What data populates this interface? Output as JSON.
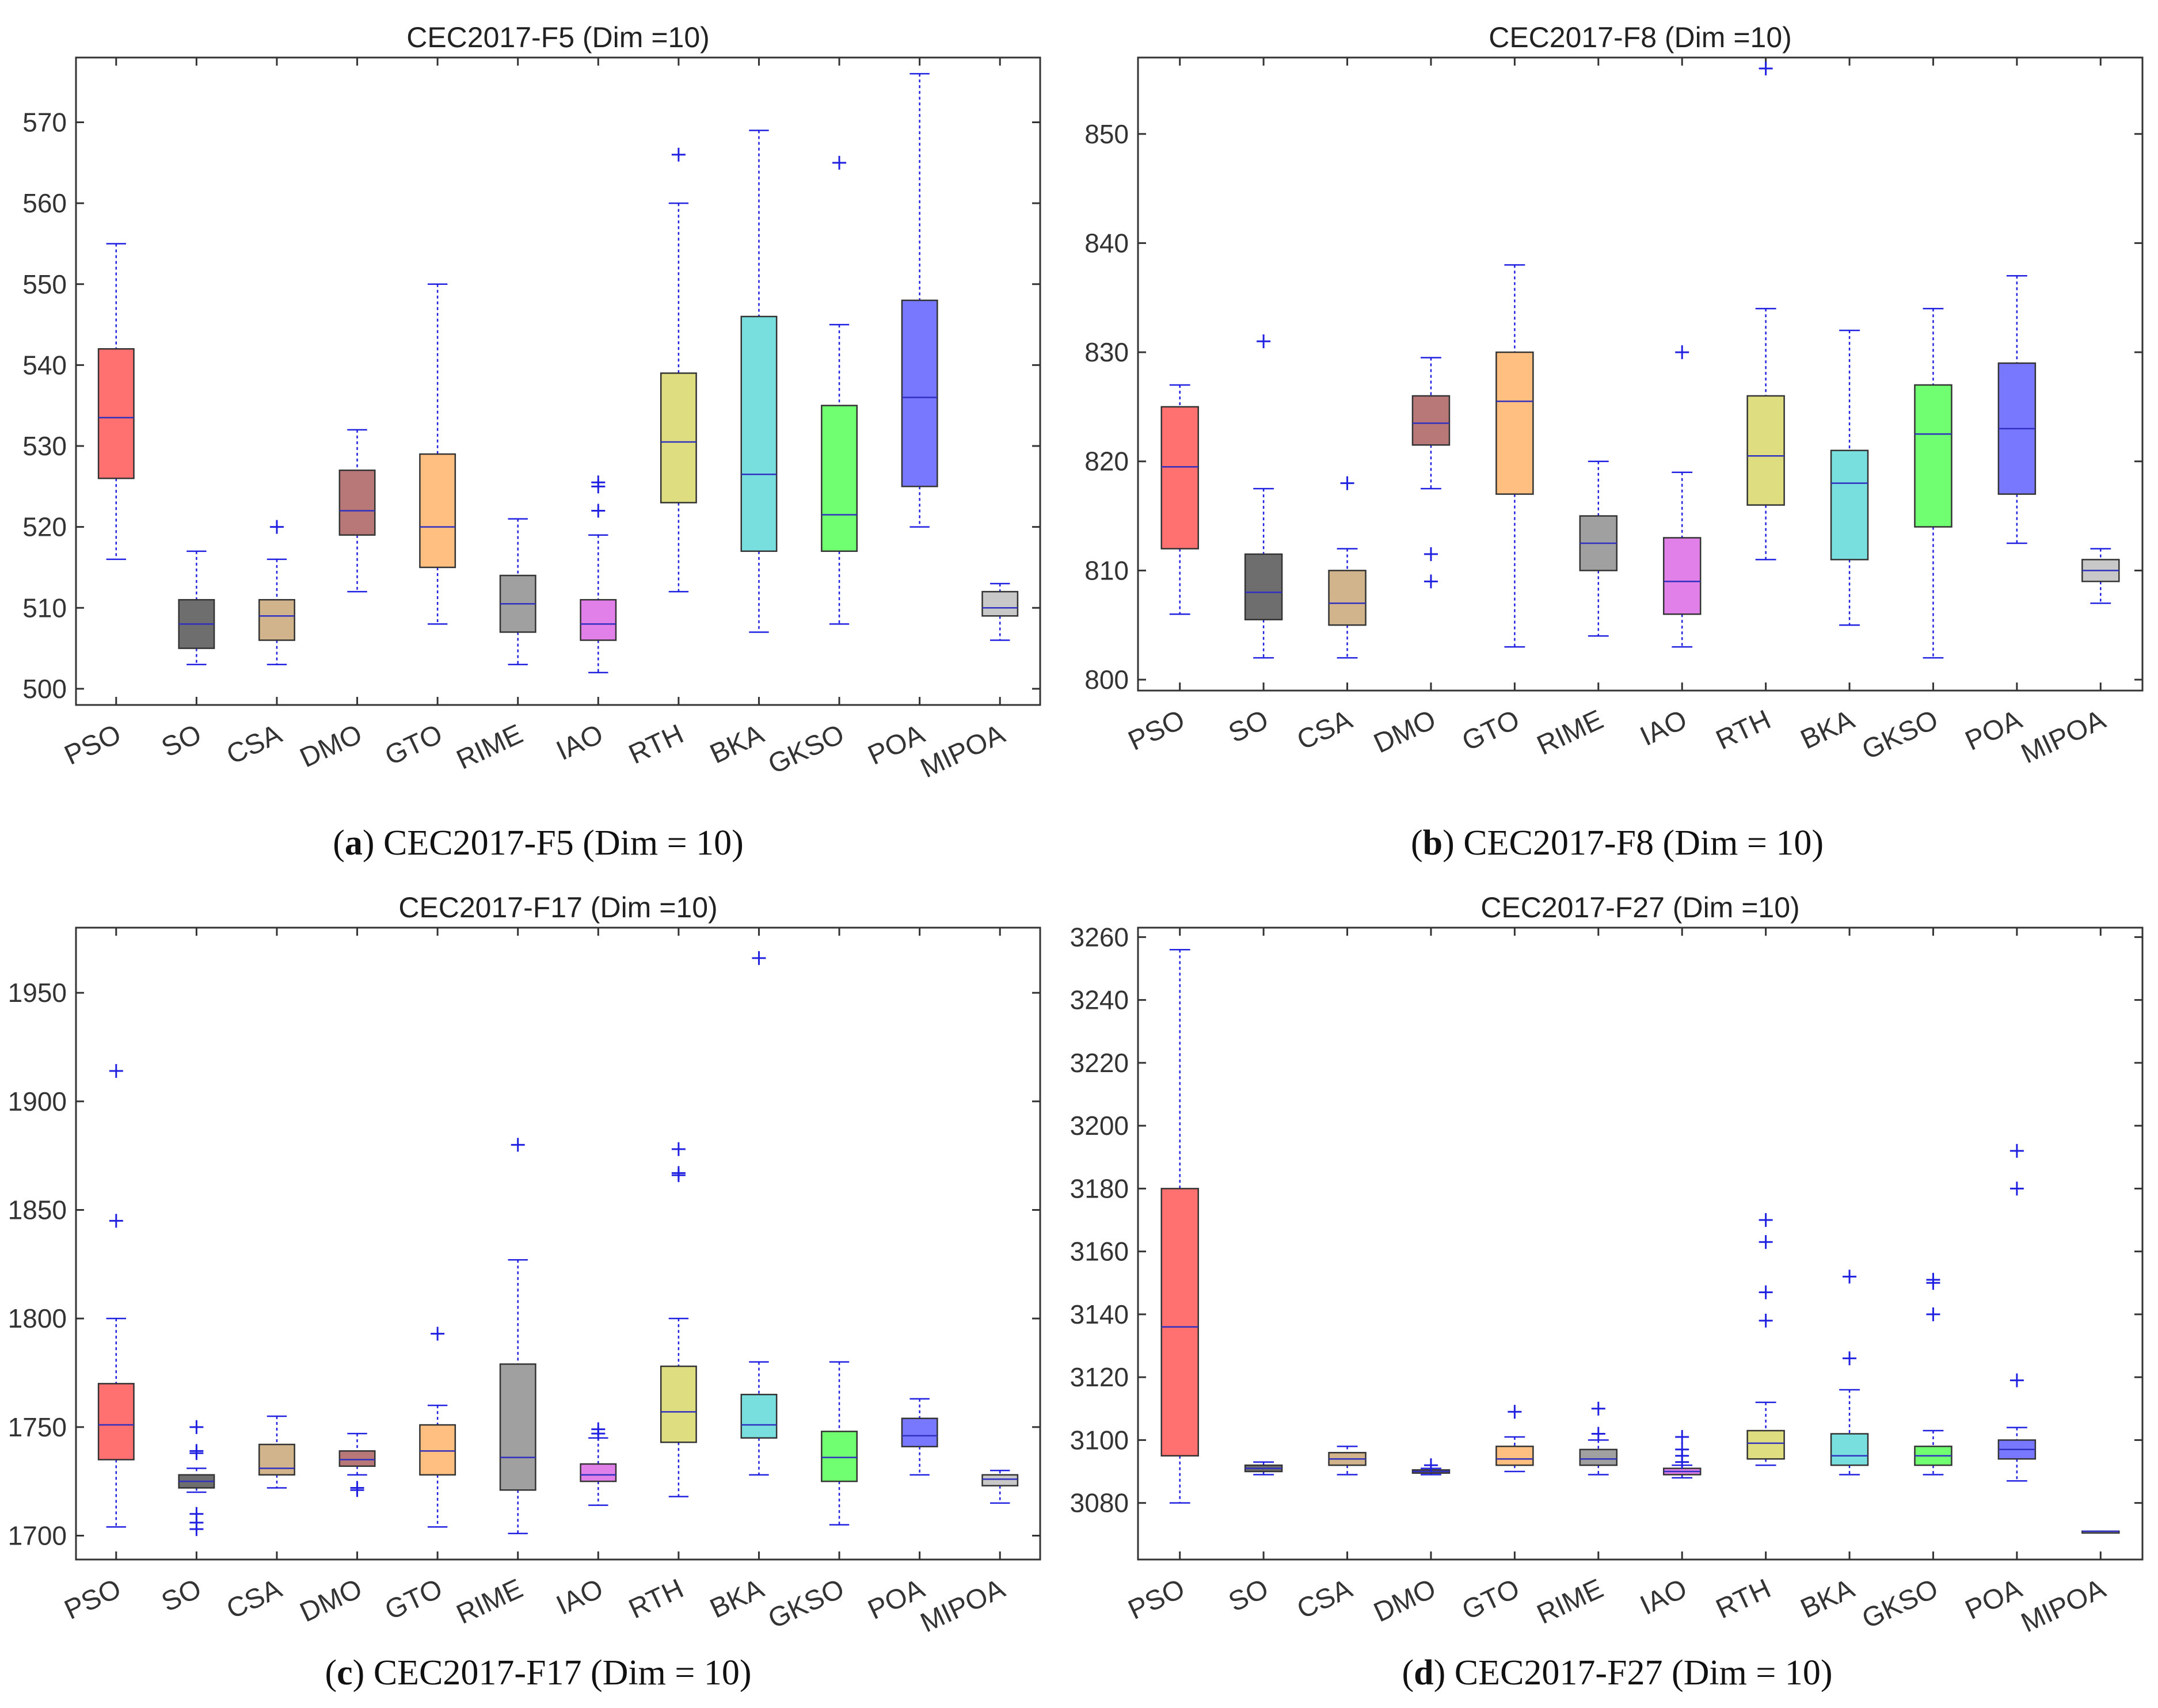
{
  "captions": [
    {
      "letter": "a",
      "text": " CEC2017-F5 (Dim = 10)"
    },
    {
      "letter": "b",
      "text": " CEC2017-F8 (Dim = 10)"
    },
    {
      "letter": "c",
      "text": " CEC2017-F17 (Dim = 10)"
    },
    {
      "letter": "d",
      "text": " CEC2017-F27 (Dim = 10)"
    }
  ],
  "style": {
    "box_colors": {
      "PSO": "#ff7070",
      "SO": "#6e6e6e",
      "CSA": "#d2b48c",
      "DMO": "#b87878",
      "GTO": "#ffbf80",
      "RIME": "#a0a0a0",
      "IAO": "#e080e8",
      "RTH": "#dede80",
      "BKA": "#78dede",
      "GKSO": "#70ff70",
      "POA": "#7878ff",
      "MIPOA": "#c8c8c8"
    },
    "whisker_color": "#2020e0",
    "outlier_color": "#2020e0",
    "median_color": "#3030c0"
  },
  "chart_data": [
    {
      "type": "box",
      "title": "CEC2017-F5 (Dim =10)",
      "categories": [
        "PSO",
        "SO",
        "CSA",
        "DMO",
        "GTO",
        "RIME",
        "IAO",
        "RTH",
        "BKA",
        "GKSO",
        "POA",
        "MIPOA"
      ],
      "ylim": [
        498,
        578
      ],
      "yticks": [
        500,
        510,
        520,
        530,
        540,
        550,
        560,
        570
      ],
      "boxes": [
        {
          "min": 516,
          "q1": 526,
          "median": 533.5,
          "q3": 542,
          "max": 555,
          "outliers": []
        },
        {
          "min": 503,
          "q1": 505,
          "median": 508,
          "q3": 511,
          "max": 517,
          "outliers": []
        },
        {
          "min": 503,
          "q1": 506,
          "median": 509,
          "q3": 511,
          "max": 516,
          "outliers": [
            520
          ]
        },
        {
          "min": 512,
          "q1": 519,
          "median": 522,
          "q3": 527,
          "max": 532,
          "outliers": []
        },
        {
          "min": 508,
          "q1": 515,
          "median": 520,
          "q3": 529,
          "max": 550,
          "outliers": []
        },
        {
          "min": 503,
          "q1": 507,
          "median": 510.5,
          "q3": 514,
          "max": 521,
          "outliers": []
        },
        {
          "min": 502,
          "q1": 506,
          "median": 508,
          "q3": 511,
          "max": 519,
          "outliers": [
            522,
            525,
            525.5
          ]
        },
        {
          "min": 512,
          "q1": 523,
          "median": 530.5,
          "q3": 539,
          "max": 560,
          "outliers": [
            566
          ]
        },
        {
          "min": 507,
          "q1": 517,
          "median": 526.5,
          "q3": 546,
          "max": 569,
          "outliers": []
        },
        {
          "min": 508,
          "q1": 517,
          "median": 521.5,
          "q3": 535,
          "max": 545,
          "outliers": [
            565
          ]
        },
        {
          "min": 520,
          "q1": 525,
          "median": 536,
          "q3": 548,
          "max": 576,
          "outliers": []
        },
        {
          "min": 506,
          "q1": 509,
          "median": 510,
          "q3": 512,
          "max": 513,
          "outliers": []
        }
      ]
    },
    {
      "type": "box",
      "title": "CEC2017-F8 (Dim =10)",
      "categories": [
        "PSO",
        "SO",
        "CSA",
        "DMO",
        "GTO",
        "RIME",
        "IAO",
        "RTH",
        "BKA",
        "GKSO",
        "POA",
        "MIPOA"
      ],
      "ylim": [
        799,
        857
      ],
      "yticks": [
        800,
        810,
        820,
        830,
        840,
        850
      ],
      "boxes": [
        {
          "min": 806,
          "q1": 812,
          "median": 819.5,
          "q3": 825,
          "max": 827,
          "outliers": []
        },
        {
          "min": 802,
          "q1": 805.5,
          "median": 808,
          "q3": 811.5,
          "max": 817.5,
          "outliers": [
            831
          ]
        },
        {
          "min": 802,
          "q1": 805,
          "median": 807,
          "q3": 810,
          "max": 812,
          "outliers": [
            818
          ]
        },
        {
          "min": 817.5,
          "q1": 821.5,
          "median": 823.5,
          "q3": 826,
          "max": 829.5,
          "outliers": [
            809,
            811.5
          ]
        },
        {
          "min": 803,
          "q1": 817,
          "median": 825.5,
          "q3": 830,
          "max": 838,
          "outliers": []
        },
        {
          "min": 804,
          "q1": 810,
          "median": 812.5,
          "q3": 815,
          "max": 820,
          "outliers": []
        },
        {
          "min": 803,
          "q1": 806,
          "median": 809,
          "q3": 813,
          "max": 819,
          "outliers": [
            830
          ]
        },
        {
          "min": 811,
          "q1": 816,
          "median": 820.5,
          "q3": 826,
          "max": 834,
          "outliers": [
            856
          ]
        },
        {
          "min": 805,
          "q1": 811,
          "median": 818,
          "q3": 821,
          "max": 832,
          "outliers": []
        },
        {
          "min": 802,
          "q1": 814,
          "median": 822.5,
          "q3": 827,
          "max": 834,
          "outliers": []
        },
        {
          "min": 812.5,
          "q1": 817,
          "median": 823,
          "q3": 829,
          "max": 837,
          "outliers": []
        },
        {
          "min": 807,
          "q1": 809,
          "median": 810,
          "q3": 811,
          "max": 812,
          "outliers": []
        }
      ]
    },
    {
      "type": "box",
      "title": "CEC2017-F17 (Dim =10)",
      "categories": [
        "PSO",
        "SO",
        "CSA",
        "DMO",
        "GTO",
        "RIME",
        "IAO",
        "RTH",
        "BKA",
        "GKSO",
        "POA",
        "MIPOA"
      ],
      "ylim": [
        1689,
        1980
      ],
      "yticks": [
        1700,
        1750,
        1800,
        1850,
        1900,
        1950
      ],
      "boxes": [
        {
          "min": 1704,
          "q1": 1735,
          "median": 1751,
          "q3": 1770,
          "max": 1800,
          "outliers": [
            1845,
            1914
          ]
        },
        {
          "min": 1720,
          "q1": 1722,
          "median": 1725,
          "q3": 1728,
          "max": 1731,
          "outliers": [
            1703,
            1706,
            1710,
            1738,
            1739,
            1750
          ]
        },
        {
          "min": 1722,
          "q1": 1728,
          "median": 1731,
          "q3": 1742,
          "max": 1755,
          "outliers": []
        },
        {
          "min": 1728,
          "q1": 1732,
          "median": 1735,
          "q3": 1739,
          "max": 1747,
          "outliers": [
            1721,
            1722
          ]
        },
        {
          "min": 1704,
          "q1": 1728,
          "median": 1739,
          "q3": 1751,
          "max": 1760,
          "outliers": [
            1793
          ]
        },
        {
          "min": 1701,
          "q1": 1721,
          "median": 1736,
          "q3": 1779,
          "max": 1827,
          "outliers": [
            1880
          ]
        },
        {
          "min": 1714,
          "q1": 1725,
          "median": 1728,
          "q3": 1733,
          "max": 1745,
          "outliers": [
            1747,
            1749
          ]
        },
        {
          "min": 1718,
          "q1": 1743,
          "median": 1757,
          "q3": 1778,
          "max": 1800,
          "outliers": [
            1866,
            1867,
            1878
          ]
        },
        {
          "min": 1728,
          "q1": 1745,
          "median": 1751,
          "q3": 1765,
          "max": 1780,
          "outliers": [
            1966
          ]
        },
        {
          "min": 1705,
          "q1": 1725,
          "median": 1736,
          "q3": 1748,
          "max": 1780,
          "outliers": []
        },
        {
          "min": 1728,
          "q1": 1741,
          "median": 1746,
          "q3": 1754,
          "max": 1763,
          "outliers": []
        },
        {
          "min": 1715,
          "q1": 1723,
          "median": 1726,
          "q3": 1728,
          "max": 1730,
          "outliers": []
        }
      ]
    },
    {
      "type": "box",
      "title": "CEC2017-F27 (Dim =10)",
      "categories": [
        "PSO",
        "SO",
        "CSA",
        "DMO",
        "GTO",
        "RIME",
        "IAO",
        "RTH",
        "BKA",
        "GKSO",
        "POA",
        "MIPOA"
      ],
      "ylim": [
        3062,
        3263
      ],
      "yticks": [
        3080,
        3100,
        3120,
        3140,
        3160,
        3180,
        3200,
        3220,
        3240,
        3260
      ],
      "boxes": [
        {
          "min": 3080,
          "q1": 3095,
          "median": 3136,
          "q3": 3180,
          "max": 3256,
          "outliers": []
        },
        {
          "min": 3089,
          "q1": 3090,
          "median": 3091,
          "q3": 3092,
          "max": 3093,
          "outliers": []
        },
        {
          "min": 3089,
          "q1": 3092,
          "median": 3094,
          "q3": 3096,
          "max": 3098,
          "outliers": []
        },
        {
          "min": 3089,
          "q1": 3089.5,
          "median": 3090,
          "q3": 3090.5,
          "max": 3091,
          "outliers": [
            3092
          ]
        },
        {
          "min": 3090,
          "q1": 3092,
          "median": 3094,
          "q3": 3098,
          "max": 3101,
          "outliers": [
            3109
          ]
        },
        {
          "min": 3089,
          "q1": 3092,
          "median": 3094,
          "q3": 3097,
          "max": 3100,
          "outliers": [
            3102,
            3110
          ]
        },
        {
          "min": 3088,
          "q1": 3089,
          "median": 3090,
          "q3": 3091,
          "max": 3092,
          "outliers": [
            3093,
            3095,
            3097,
            3101
          ]
        },
        {
          "min": 3092,
          "q1": 3094,
          "median": 3099,
          "q3": 3103,
          "max": 3112,
          "outliers": [
            3138,
            3147,
            3163,
            3170
          ]
        },
        {
          "min": 3089,
          "q1": 3092,
          "median": 3095,
          "q3": 3102,
          "max": 3116,
          "outliers": [
            3126,
            3152
          ]
        },
        {
          "min": 3089,
          "q1": 3092,
          "median": 3095,
          "q3": 3098,
          "max": 3103,
          "outliers": [
            3140,
            3150,
            3151
          ]
        },
        {
          "min": 3087,
          "q1": 3094,
          "median": 3097,
          "q3": 3100,
          "max": 3104,
          "outliers": [
            3119,
            3180,
            3192
          ]
        },
        {
          "min": 3071,
          "q1": 3071,
          "median": 3071,
          "q3": 3071,
          "max": 3071,
          "outliers": []
        }
      ]
    }
  ]
}
